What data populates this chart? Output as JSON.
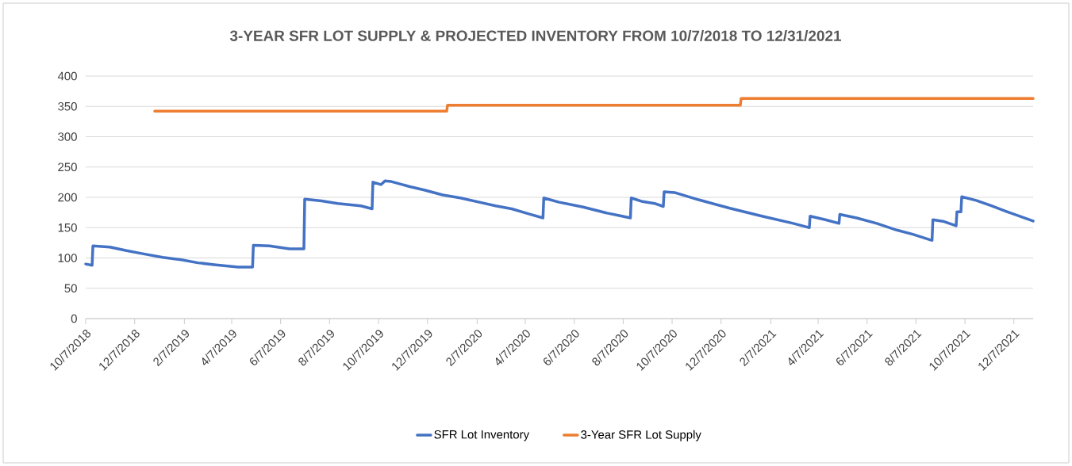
{
  "chart_data": {
    "type": "line",
    "title": "3-YEAR SFR LOT SUPPLY & PROJECTED INVENTORY FROM 10/7/2018 TO 12/31/2021",
    "xlim": [
      "2018-10-07",
      "2021-12-31"
    ],
    "xticks": [
      {
        "value": "2018-10-07",
        "label": "10/7/2018"
      },
      {
        "value": "2018-12-07",
        "label": "12/7/2018"
      },
      {
        "value": "2019-02-07",
        "label": "2/7/2019"
      },
      {
        "value": "2019-04-07",
        "label": "4/7/2019"
      },
      {
        "value": "2019-06-07",
        "label": "6/7/2019"
      },
      {
        "value": "2019-08-07",
        "label": "8/7/2019"
      },
      {
        "value": "2019-10-07",
        "label": "10/7/2019"
      },
      {
        "value": "2019-12-07",
        "label": "12/7/2019"
      },
      {
        "value": "2020-02-07",
        "label": "2/7/2020"
      },
      {
        "value": "2020-04-07",
        "label": "4/7/2020"
      },
      {
        "value": "2020-06-07",
        "label": "6/7/2020"
      },
      {
        "value": "2020-08-07",
        "label": "8/7/2020"
      },
      {
        "value": "2020-10-07",
        "label": "10/7/2020"
      },
      {
        "value": "2020-12-07",
        "label": "12/7/2020"
      },
      {
        "value": "2021-02-07",
        "label": "2/7/2021"
      },
      {
        "value": "2021-04-07",
        "label": "4/7/2021"
      },
      {
        "value": "2021-06-07",
        "label": "6/7/2021"
      },
      {
        "value": "2021-08-07",
        "label": "8/7/2021"
      },
      {
        "value": "2021-10-07",
        "label": "10/7/2021"
      },
      {
        "value": "2021-12-07",
        "label": "12/7/2021"
      }
    ],
    "ylim": [
      0,
      400
    ],
    "yticks": [
      0,
      50,
      100,
      150,
      200,
      250,
      300,
      350,
      400
    ],
    "grid": "y",
    "legend": "bottom",
    "series": [
      {
        "name": "SFR Lot Inventory",
        "color": "#4472c4",
        "x": [
          "2018-10-07",
          "2018-10-15",
          "2018-10-16",
          "2018-11-06",
          "2018-11-27",
          "2018-12-17",
          "2019-01-11",
          "2019-02-03",
          "2019-02-24",
          "2019-03-16",
          "2019-04-15",
          "2019-05-03",
          "2019-05-04",
          "2019-05-24",
          "2019-06-18",
          "2019-07-06",
          "2019-07-07",
          "2019-07-28",
          "2019-08-17",
          "2019-09-15",
          "2019-09-29",
          "2019-09-30",
          "2019-10-10",
          "2019-10-15",
          "2019-10-23",
          "2019-11-14",
          "2019-12-03",
          "2019-12-26",
          "2020-01-17",
          "2020-02-13",
          "2020-03-01",
          "2020-03-21",
          "2020-04-13",
          "2020-04-29",
          "2020-04-30",
          "2020-05-19",
          "2020-06-18",
          "2020-07-18",
          "2020-08-02",
          "2020-08-16",
          "2020-08-17",
          "2020-08-31",
          "2020-09-15",
          "2020-09-26",
          "2020-09-27",
          "2020-10-10",
          "2020-11-09",
          "2020-12-18",
          "2021-01-27",
          "2021-03-07",
          "2021-03-27",
          "2021-03-28",
          "2021-04-16",
          "2021-05-03",
          "2021-05-04",
          "2021-05-25",
          "2021-06-19",
          "2021-07-14",
          "2021-08-03",
          "2021-08-27",
          "2021-08-28",
          "2021-09-11",
          "2021-09-26",
          "2021-09-27",
          "2021-10-02",
          "2021-10-03",
          "2021-10-21",
          "2021-11-09",
          "2021-11-29",
          "2021-12-31"
        ],
        "values": [
          90,
          88,
          120,
          118,
          112,
          107,
          101,
          97,
          92,
          89,
          85,
          85,
          121,
          120,
          115,
          115,
          197,
          194,
          190,
          186,
          181,
          225,
          221,
          227,
          226,
          218,
          212,
          204,
          199,
          191,
          186,
          181,
          172,
          166,
          199,
          192,
          184,
          174,
          170,
          166,
          199,
          193,
          190,
          185,
          209,
          208,
          196,
          182,
          169,
          157,
          150,
          169,
          163,
          157,
          172,
          166,
          157,
          146,
          139,
          129,
          163,
          160,
          153,
          176,
          176,
          201,
          195,
          186,
          176,
          161
        ]
      },
      {
        "name": "3-Year SFR Lot Supply",
        "color": "#ed7d31",
        "x": [
          "2019-01-01",
          "2019-12-31",
          "2020-01-01",
          "2020-12-31",
          "2021-01-01",
          "2021-12-31"
        ],
        "values": [
          342,
          342,
          352,
          352,
          363,
          363
        ]
      }
    ]
  }
}
